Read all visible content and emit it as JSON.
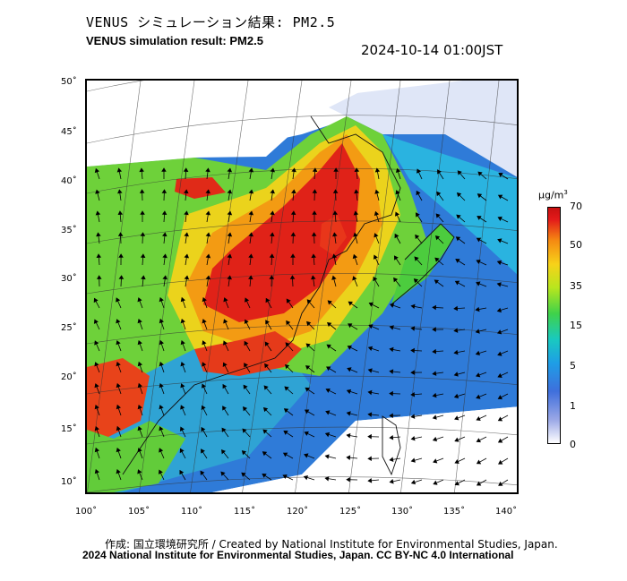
{
  "header": {
    "title_jp": "VENUS シミュレーション結果: PM2.5",
    "title_en": "VENUS simulation result: PM2.5",
    "timestamp": "2024-10-14 01:00JST"
  },
  "map": {
    "lon_ticks": [
      "100˚",
      "105˚",
      "110˚",
      "115˚",
      "120˚",
      "125˚",
      "130˚",
      "135˚",
      "140˚"
    ],
    "lat_ticks": [
      "50˚",
      "45˚",
      "40˚",
      "35˚",
      "30˚",
      "25˚",
      "20˚",
      "15˚",
      "10˚"
    ]
  },
  "colorbar": {
    "unit_prefix": "µg/m",
    "unit_sup": "3",
    "labels": [
      "70",
      "50",
      "35",
      "15",
      "5",
      "1",
      "0"
    ],
    "colors": [
      "#ffffff",
      "#9aa7e6",
      "#3f6fdc",
      "#1e9ee6",
      "#19c9c0",
      "#3fd24a",
      "#b8e61e",
      "#f7d219",
      "#f58a12",
      "#e31a1a"
    ]
  },
  "footer": {
    "credit_line1": "作成: 国立環境研究所 / Created by National Institute for Environmental Studies, Japan.",
    "credit_line2": "2024 National Institute for Environmental Studies, Japan. CC BY-NC 4.0 International"
  }
}
